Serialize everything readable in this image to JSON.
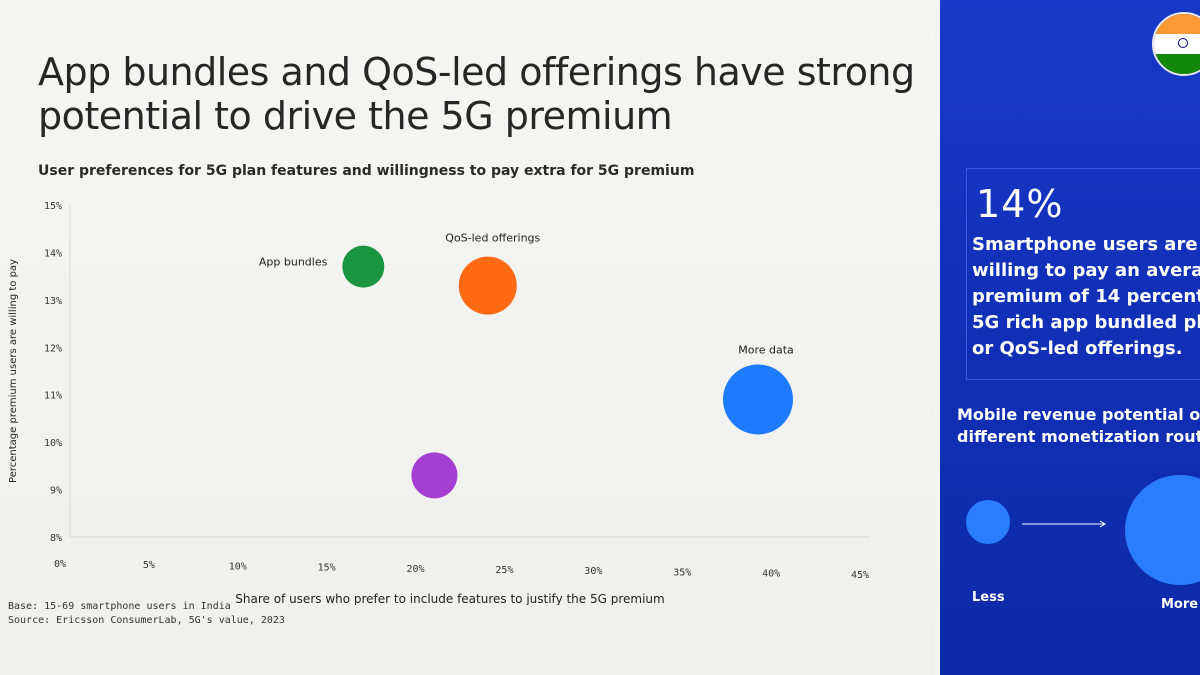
{
  "slide": {
    "title_line1": "App bundles and QoS-led offerings have strong",
    "title_line2": "potential to drive the 5G premium",
    "footnote_base": "Base: 15-69 smartphone users in India",
    "footnote_source": "Source: Ericsson ConsumerLab, 5G's value, 2023"
  },
  "chart_data": {
    "type": "scatter",
    "title": "User preferences for 5G plan features and willingness to pay extra for 5G premium",
    "xlabel": "Share of users who prefer to include features to justify the 5G premium",
    "ylabel": "Percentage premium users are willing to pay",
    "x_ticks": [
      "0%",
      "5%",
      "10%",
      "15%",
      "20%",
      "25%",
      "30%",
      "35%",
      "40%",
      "45%"
    ],
    "y_ticks": [
      "8%",
      "9%",
      "10%",
      "11%",
      "12%",
      "13%",
      "14%",
      "15%"
    ],
    "xlim": [
      0,
      45
    ],
    "ylim": [
      8,
      15
    ],
    "grid": false,
    "points": [
      {
        "label": "App bundles",
        "x": 16.5,
        "y": 13.7,
        "color": "#1a9641"
      },
      {
        "label": "QoS-led offerings",
        "x": 23.5,
        "y": 13.3,
        "color": "#ff6a13"
      },
      {
        "label": "More data",
        "x": 38.7,
        "y": 10.9,
        "color": "#1e7bff"
      },
      {
        "label": "",
        "x": 20.5,
        "y": 9.3,
        "color": "#a43fd1"
      }
    ]
  },
  "sidebar": {
    "flag_icon": "india-flag-icon",
    "stat_value": "14%",
    "stat_line1": "Smartphone users are",
    "stat_line2": "willing to pay an avera",
    "stat_line3": "premium of 14 percent",
    "stat_line4": "5G rich app bundled pl",
    "stat_line5": "or QoS-led offerings.",
    "revenue_line1": "Mobile revenue potential of",
    "revenue_line2": "different monetization route",
    "less_label": "Less",
    "more_label": "More"
  }
}
